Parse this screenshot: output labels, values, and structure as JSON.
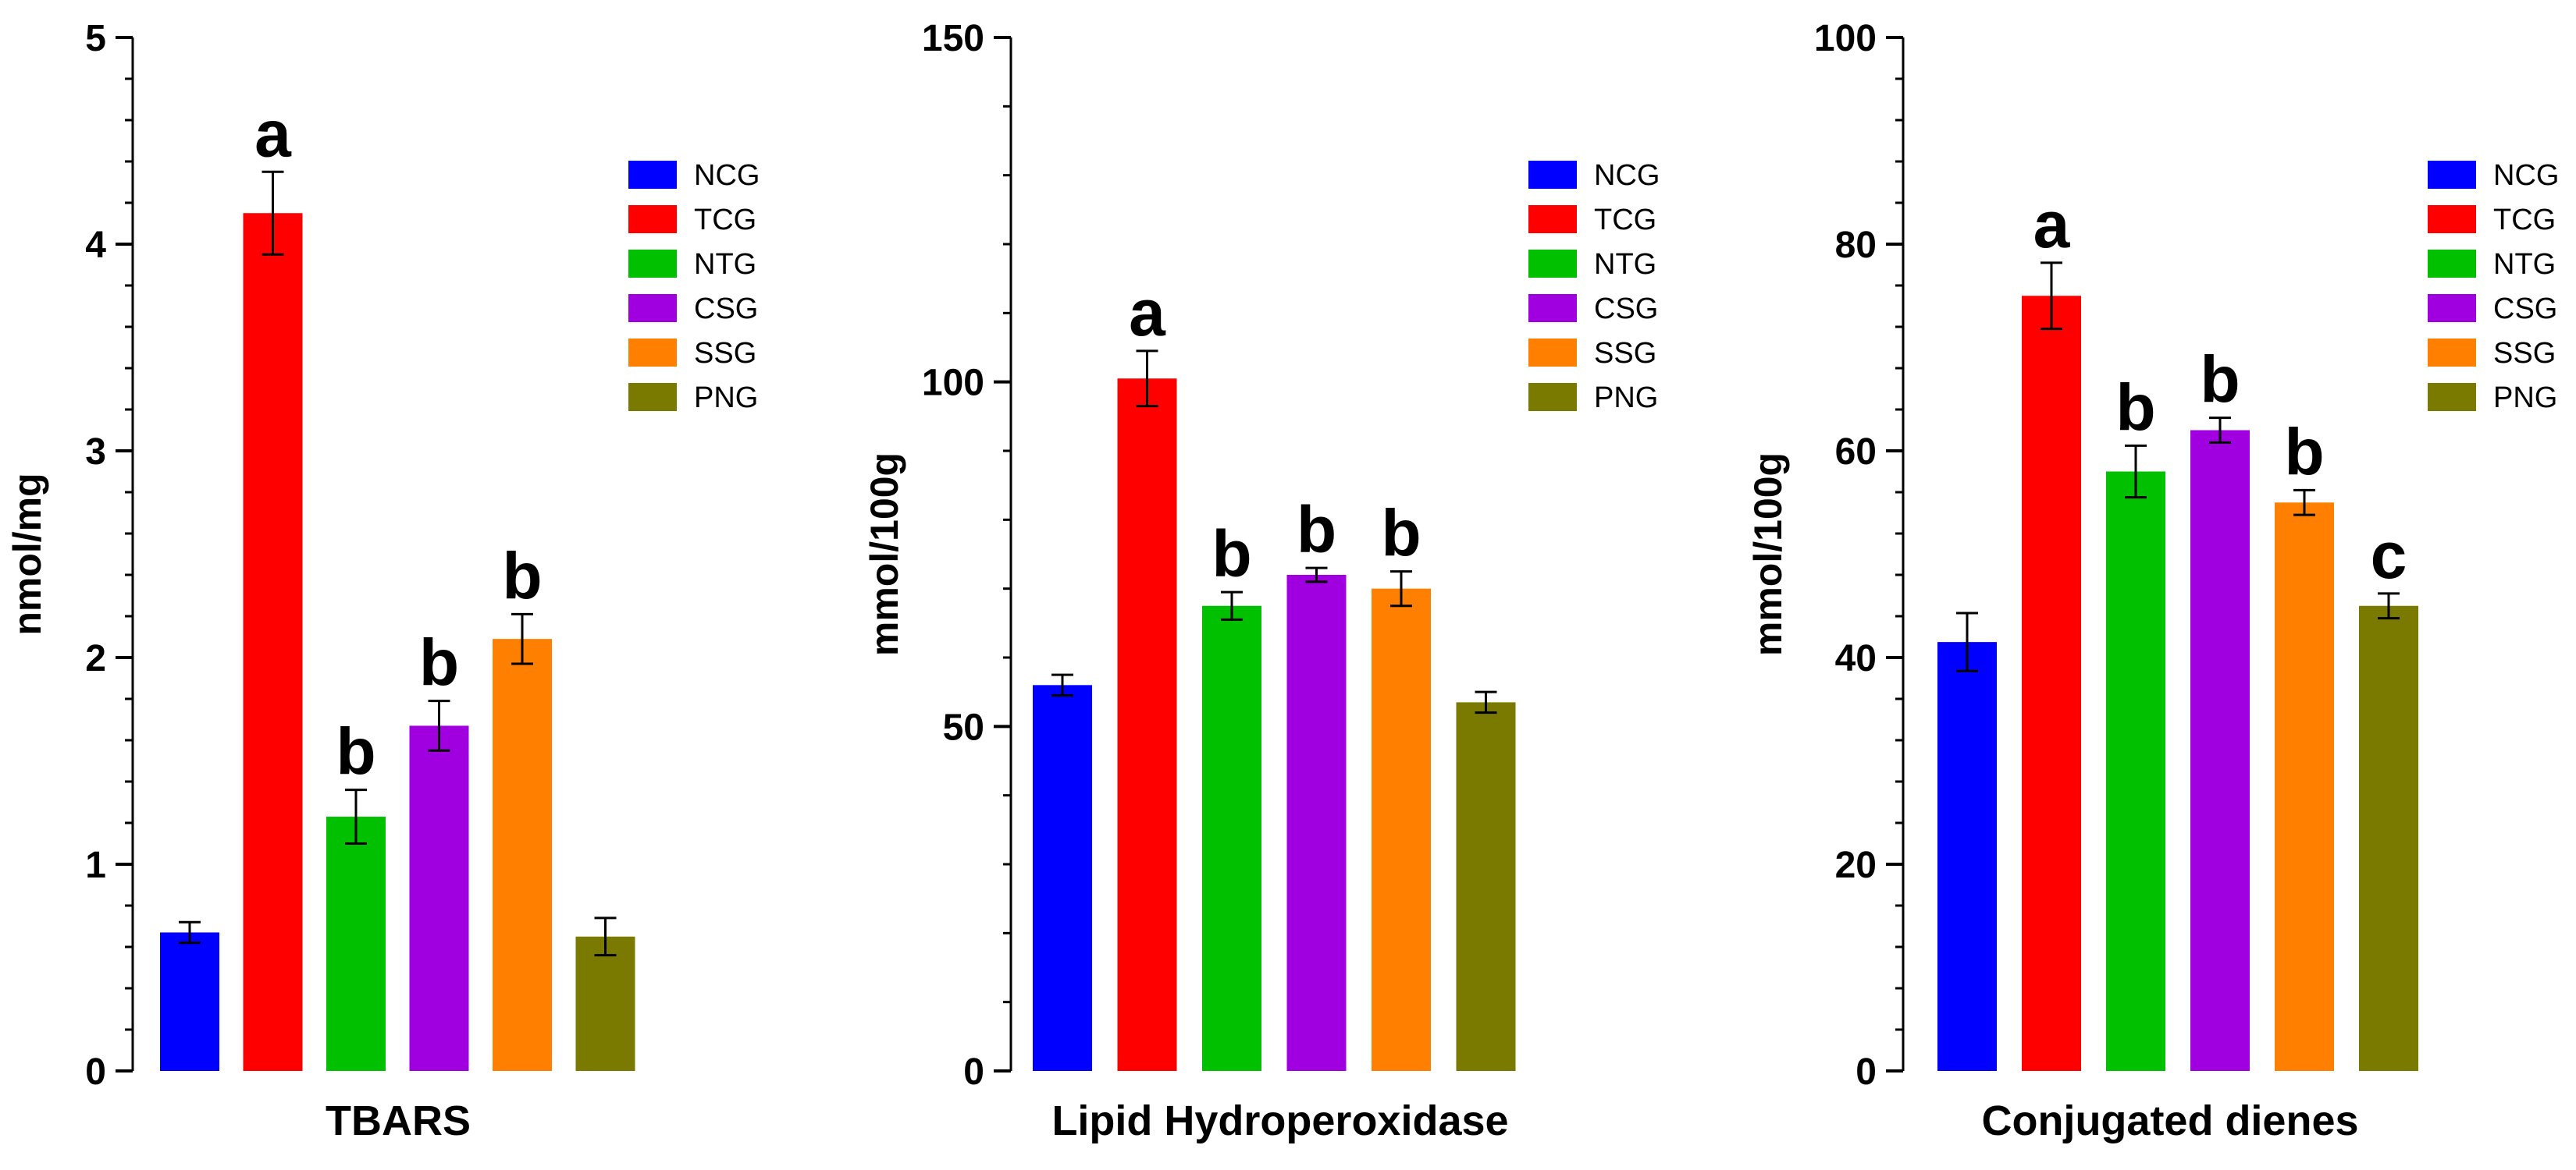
{
  "chart_data": [
    {
      "type": "bar",
      "title": "",
      "xlabel": "TBARS",
      "ylabel": "nmol/mg",
      "ylim": [
        0,
        5
      ],
      "yticks": [
        0,
        1,
        2,
        3,
        4,
        5
      ],
      "yticks_text": [
        "0",
        "1",
        "2",
        "3",
        "4",
        "5"
      ],
      "legend_position": "right",
      "categories": [
        "NCG",
        "TCG",
        "NTG",
        "CSG",
        "SSG",
        "PNG"
      ],
      "values": [
        0.67,
        4.15,
        1.23,
        1.67,
        2.09,
        0.65
      ],
      "errors": [
        0.05,
        0.2,
        0.13,
        0.12,
        0.12,
        0.09
      ],
      "significance": [
        "",
        "a",
        "b",
        "b",
        "b",
        ""
      ]
    },
    {
      "type": "bar",
      "title": "",
      "xlabel": "Lipid Hydroperoxidase",
      "ylabel": "mmol/100g",
      "ylim": [
        0,
        150
      ],
      "yticks": [
        0,
        50,
        100,
        150
      ],
      "yticks_text": [
        "0",
        "50",
        "100",
        "150"
      ],
      "legend_position": "right",
      "categories": [
        "NCG",
        "TCG",
        "NTG",
        "CSG",
        "SSG",
        "PNG"
      ],
      "values": [
        56,
        100.5,
        67.5,
        72,
        70,
        53.5
      ],
      "errors": [
        1.5,
        4,
        2,
        1,
        2.5,
        1.5
      ],
      "significance": [
        "",
        "a",
        "b",
        "b",
        "b",
        ""
      ]
    },
    {
      "type": "bar",
      "title": "",
      "xlabel": "Conjugated dienes",
      "ylabel": "mmol/100g",
      "ylim": [
        0,
        100
      ],
      "yticks": [
        0,
        20,
        40,
        60,
        80,
        100
      ],
      "yticks_text": [
        "0",
        "20",
        "40",
        "60",
        "80",
        "100"
      ],
      "legend_position": "right",
      "categories": [
        "NCG",
        "TCG",
        "NTG",
        "CSG",
        "SSG",
        "PNG"
      ],
      "values": [
        41.5,
        75,
        58,
        62,
        55,
        45
      ],
      "errors": [
        2.8,
        3.2,
        2.5,
        1.2,
        1.2,
        1.2
      ],
      "significance": [
        "",
        "a",
        "b",
        "b",
        "b",
        "c"
      ]
    }
  ],
  "colors": {
    "NCG": "#0000ff",
    "TCG": "#ff0000",
    "NTG": "#00c000",
    "CSG": "#a000e0",
    "SSG": "#ff8000",
    "PNG": "#7a7a00"
  }
}
